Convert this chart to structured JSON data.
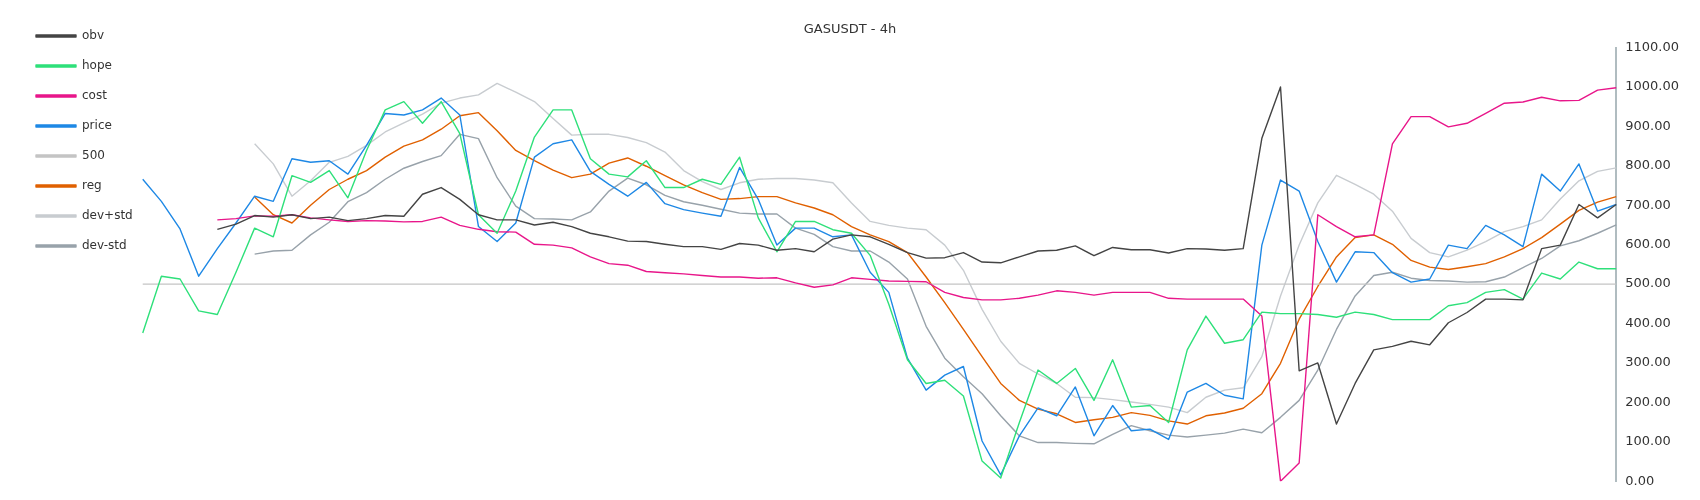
{
  "chart_data": {
    "type": "line",
    "title": "GASUSDT - 4h",
    "categories": [
      null,
      null,
      null,
      null,
      null,
      null,
      null,
      null,
      null,
      null,
      null,
      null,
      null,
      null,
      null,
      null,
      null,
      null,
      null,
      null,
      null,
      null,
      null,
      null,
      null,
      null,
      null,
      null,
      null,
      null,
      null,
      null,
      null,
      null,
      null,
      null,
      null,
      null,
      null,
      null,
      null,
      null,
      null,
      null,
      null,
      null,
      null,
      null,
      null,
      null,
      null,
      null,
      null,
      null,
      null,
      null,
      null,
      null,
      null,
      null,
      null,
      null,
      null,
      null,
      null,
      null,
      null,
      null,
      null,
      null,
      null,
      null,
      null,
      null,
      null,
      null,
      null,
      null,
      null,
      null
    ],
    "series": [
      {
        "name": "obv",
        "color": "#444444",
        "values": [
          null,
          null,
          null,
          null,
          639,
          652,
          674,
          670,
          676,
          666,
          670,
          661,
          666,
          674,
          672,
          728,
          745,
          715,
          676,
          663,
          663,
          650,
          657,
          646,
          629,
          620,
          609,
          608,
          601,
          595,
          595,
          588,
          603,
          599,
          586,
          590,
          582,
          614,
          625,
          620,
          601,
          580,
          566,
          567,
          580,
          556,
          554,
          569,
          584,
          586,
          597,
          572,
          593,
          587,
          587,
          579,
          590,
          589,
          586,
          590,
          870,
          1000,
          280,
          300,
          145,
          248,
          333,
          342,
          355,
          346,
          402,
          428,
          462,
          462,
          460,
          590,
          599,
          702,
          668,
          702
        ]
      },
      {
        "name": "hope",
        "color": "#2ee07a",
        "values": [
          376,
          520,
          513,
          432,
          423,
          530,
          642,
          620,
          775,
          758,
          788,
          719,
          839,
          942,
          963,
          908,
          963,
          882,
          676,
          629,
          736,
          873,
          942,
          942,
          818,
          779,
          772,
          813,
          745,
          745,
          766,
          753,
          822,
          668,
          582,
          659,
          659,
          638,
          629,
          573,
          449,
          308,
          248,
          256,
          216,
          51,
          8,
          149,
          282,
          248,
          286,
          205,
          308,
          188,
          192,
          149,
          333,
          419,
          350,
          359,
          429,
          425,
          425,
          423,
          416,
          429,
          423,
          410,
          410,
          410,
          445,
          453,
          479,
          486,
          462,
          528,
          513,
          556,
          539,
          539
        ]
      },
      {
        "name": "cost",
        "color": "#e8168a",
        "values": [
          null,
          null,
          null,
          null,
          663,
          666,
          673,
          672,
          676,
          668,
          663,
          659,
          661,
          660,
          658,
          659,
          670,
          649,
          639,
          633,
          632,
          601,
          599,
          592,
          569,
          552,
          548,
          532,
          529,
          526,
          522,
          518,
          518,
          515,
          516,
          503,
          492,
          498,
          516,
          512,
          508,
          507,
          506,
          479,
          466,
          460,
          460,
          464,
          472,
          483,
          479,
          472,
          479,
          479,
          479,
          464,
          462,
          462,
          462,
          462,
          419,
          0,
          46,
          676,
          646,
          620,
          625,
          856,
          925,
          925,
          899,
          908,
          933,
          959,
          962,
          974,
          965,
          966,
          992,
          998
        ]
      },
      {
        "name": "price",
        "color": "#1e88e5",
        "values": [
          766,
          710,
          640,
          520,
          590,
          655,
          723,
          710,
          818,
          809,
          813,
          779,
          852,
          933,
          929,
          942,
          972,
          929,
          646,
          608,
          655,
          822,
          856,
          866,
          786,
          753,
          723,
          758,
          704,
          689,
          680,
          672,
          796,
          715,
          599,
          642,
          642,
          620,
          625,
          530,
          479,
          312,
          231,
          269,
          291,
          102,
          16,
          115,
          186,
          166,
          239,
          115,
          192,
          128,
          132,
          106,
          226,
          248,
          218,
          209,
          599,
          764,
          736,
          608,
          505,
          582,
          580,
          529,
          505,
          513,
          599,
          590,
          649,
          625,
          595,
          779,
          736,
          805,
          685,
          702
        ]
      },
      {
        "name": "500",
        "color": "#c4c4c4",
        "values": [
          500,
          500,
          500,
          500,
          500,
          500,
          500,
          500,
          500,
          500,
          500,
          500,
          500,
          500,
          500,
          500,
          500,
          500,
          500,
          500,
          500,
          500,
          500,
          500,
          500,
          500,
          500,
          500,
          500,
          500,
          500,
          500,
          500,
          500,
          500,
          500,
          500,
          500,
          500,
          500,
          500,
          500,
          500,
          500,
          500,
          500,
          500,
          500,
          500,
          500,
          500,
          500,
          500,
          500,
          500,
          500,
          500,
          500,
          500,
          500,
          500,
          500,
          500,
          500,
          500,
          500,
          500,
          500,
          500,
          500,
          500,
          500,
          500,
          500,
          500,
          500,
          500,
          500,
          500,
          500
        ]
      },
      {
        "name": "reg",
        "color": "#e06000",
        "values": [
          null,
          null,
          null,
          null,
          null,
          null,
          721,
          676,
          655,
          700,
          740,
          766,
          788,
          822,
          850,
          866,
          893,
          927,
          935,
          889,
          839,
          813,
          789,
          770,
          779,
          807,
          820,
          799,
          775,
          752,
          732,
          715,
          717,
          722,
          722,
          706,
          693,
          676,
          646,
          625,
          608,
          580,
          518,
          453,
          385,
          316,
          248,
          205,
          183,
          171,
          149,
          156,
          162,
          174,
          167,
          153,
          145,
          166,
          173,
          185,
          222,
          299,
          411,
          494,
          569,
          618,
          625,
          601,
          560,
          543,
          537,
          544,
          552,
          569,
          590,
          618,
          652,
          687,
          708,
          722
        ]
      },
      {
        "name": "dev+std",
        "color": "#c8ccd0",
        "values": [
          null,
          null,
          null,
          null,
          null,
          null,
          856,
          805,
          723,
          762,
          809,
          824,
          852,
          886,
          909,
          931,
          959,
          972,
          980,
          1009,
          987,
          963,
          920,
          878,
          880,
          880,
          872,
          859,
          835,
          788,
          760,
          740,
          757,
          766,
          768,
          768,
          764,
          757,
          706,
          659,
          649,
          642,
          638,
          599,
          535,
          436,
          355,
          299,
          272,
          248,
          213,
          212,
          207,
          201,
          195,
          188,
          174,
          213,
          231,
          237,
          316,
          470,
          599,
          706,
          776,
          753,
          728,
          685,
          616,
          580,
          569,
          586,
          608,
          633,
          646,
          663,
          716,
          762,
          786,
          795
        ]
      },
      {
        "name": "dev-std",
        "color": "#98a2aa",
        "values": [
          null,
          null,
          null,
          null,
          null,
          null,
          576,
          584,
          586,
          625,
          657,
          709,
          732,
          766,
          794,
          811,
          826,
          880,
          869,
          770,
          698,
          666,
          665,
          663,
          683,
          736,
          769,
          752,
          725,
          709,
          700,
          690,
          680,
          678,
          678,
          642,
          626,
          595,
          584,
          584,
          556,
          513,
          393,
          312,
          265,
          222,
          166,
          115,
          98,
          98,
          96,
          95,
          119,
          141,
          128,
          117,
          112,
          117,
          122,
          132,
          123,
          162,
          205,
          282,
          385,
          470,
          522,
          530,
          515,
          509,
          508,
          505,
          506,
          518,
          542,
          565,
          597,
          610,
          629,
          650
        ]
      }
    ],
    "ylim": [
      0,
      1100
    ],
    "yticks": [
      {
        "value": 0,
        "label": "0.00"
      },
      {
        "value": 100,
        "label": "100.00"
      },
      {
        "value": 200,
        "label": "200.00"
      },
      {
        "value": 300,
        "label": "300.00"
      },
      {
        "value": 400,
        "label": "400.00"
      },
      {
        "value": 500,
        "label": "500.00"
      },
      {
        "value": 600,
        "label": "600.00"
      },
      {
        "value": 700,
        "label": "700.00"
      },
      {
        "value": 800,
        "label": "800.00"
      },
      {
        "value": 900,
        "label": "900.00"
      },
      {
        "value": 1000,
        "label": "1000.00"
      },
      {
        "value": 1100,
        "label": "1100.00"
      }
    ],
    "grid": false,
    "legend": "top left",
    "marker": "none",
    "line_style": "solid",
    "tick_labels": "y"
  }
}
